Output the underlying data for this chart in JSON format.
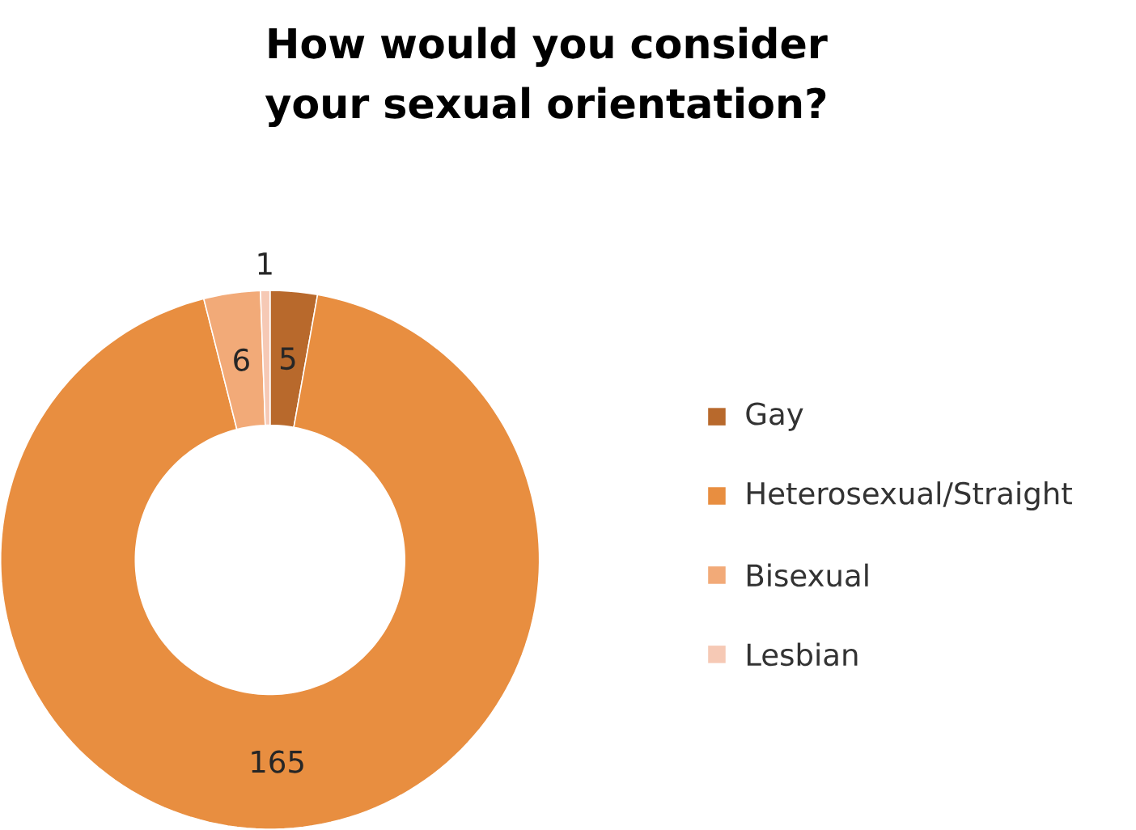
{
  "chart_data": {
    "type": "donut",
    "title": "How would you consider your sexual orientation?",
    "categories": [
      "Gay",
      "Heterosexual/Straight",
      "Bisexual",
      "Lesbian"
    ],
    "values": [
      5,
      165,
      6,
      1
    ],
    "colors": [
      "#b8692c",
      "#e88e40",
      "#f2aa78",
      "#f6c9b5"
    ],
    "data_labels": true,
    "legend": "right"
  }
}
